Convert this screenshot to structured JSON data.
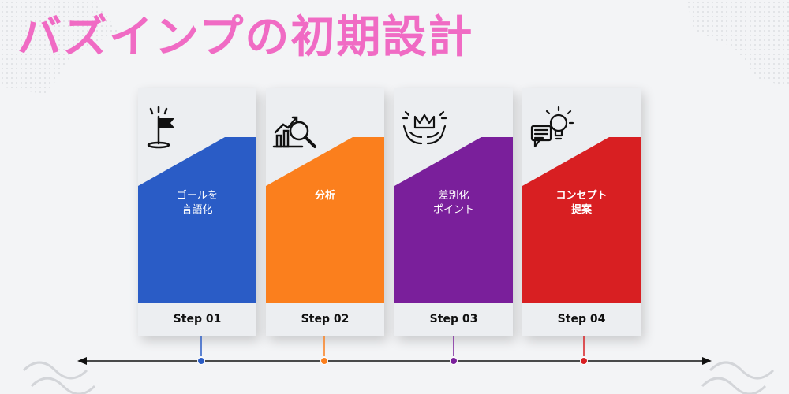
{
  "title": "バズインプの初期設計",
  "colors": {
    "title": "#f06bc4",
    "card_bg": "#eceef1",
    "timeline": "#111111"
  },
  "steps": [
    {
      "label": "ゴールを\n言語化",
      "step": "Step 01",
      "color": "#2a5cc6",
      "icon": "goal-flag-icon",
      "label_bold": false
    },
    {
      "label": "分析",
      "step": "Step 02",
      "color": "#fb7f1d",
      "icon": "analysis-magnifier-icon",
      "label_bold": true
    },
    {
      "label": "差別化\nポイント",
      "step": "Step 03",
      "color": "#7a1f9b",
      "icon": "crown-hands-icon",
      "label_bold": false
    },
    {
      "label": "コンセプト\n提案",
      "step": "Step 04",
      "color": "#d81f22",
      "icon": "idea-bulb-icon",
      "label_bold": true
    }
  ]
}
